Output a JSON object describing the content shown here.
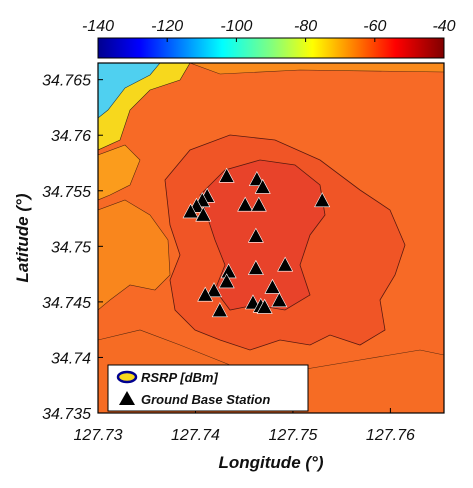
{
  "chart_data": {
    "type": "heatmap",
    "title": "",
    "xlabel": "Longitude (°)",
    "ylabel": "Latitude (°)",
    "xlim": [
      127.73,
      127.7655
    ],
    "ylim": [
      34.735,
      34.7665
    ],
    "x_ticks": [
      127.73,
      127.74,
      127.75,
      127.76
    ],
    "x_tick_labels": [
      "127.73",
      "127.74",
      "127.75",
      "127.76"
    ],
    "y_ticks": [
      34.735,
      34.74,
      34.745,
      34.75,
      34.755,
      34.76,
      34.765
    ],
    "y_tick_labels": [
      "34.735",
      "34.74",
      "34.745",
      "34.75",
      "34.755",
      "34.76",
      "34.765"
    ],
    "colorbar": {
      "label": "RSRP [dBm]",
      "range": [
        -140,
        -40
      ],
      "ticks": [
        -140,
        -120,
        -100,
        -80,
        -60,
        -40
      ],
      "tick_labels": [
        "-140",
        "-120",
        "-100",
        "-80",
        "-60",
        "-40"
      ],
      "colormap": "jet",
      "position": "top"
    },
    "legend": {
      "position": "bottom-left",
      "entries": [
        {
          "label": "RSRP [dBm]",
          "marker": "contour"
        },
        {
          "label": "Ground Base Station",
          "marker": "triangle"
        }
      ]
    },
    "series": [
      {
        "name": "Ground Base Station",
        "marker": "black-triangle",
        "points": [
          [
            127.7432,
            34.7563
          ],
          [
            127.7463,
            34.756
          ],
          [
            127.7469,
            34.7553
          ],
          [
            127.7412,
            34.7545
          ],
          [
            127.7407,
            34.7541
          ],
          [
            127.7401,
            34.7536
          ],
          [
            127.7395,
            34.7531
          ],
          [
            127.7408,
            34.7528
          ],
          [
            127.7451,
            34.7537
          ],
          [
            127.7465,
            34.7537
          ],
          [
            127.753,
            34.7541
          ],
          [
            127.7462,
            34.7509
          ],
          [
            127.7434,
            34.7477
          ],
          [
            127.7462,
            34.748
          ],
          [
            127.7492,
            34.7483
          ],
          [
            127.7432,
            34.7468
          ],
          [
            127.7479,
            34.7463
          ],
          [
            127.7419,
            34.746
          ],
          [
            127.741,
            34.7456
          ],
          [
            127.7459,
            34.7449
          ],
          [
            127.7467,
            34.7446
          ],
          [
            127.7471,
            34.7445
          ],
          [
            127.7486,
            34.7451
          ],
          [
            127.7425,
            34.7442
          ]
        ]
      }
    ],
    "field_regions": [
      {
        "name": "outer background",
        "rsrp": -56
      },
      {
        "name": "inner core",
        "rsrp": -50
      },
      {
        "name": "central cluster",
        "rsrp": -47
      },
      {
        "name": "west sea",
        "rsrp": -62
      },
      {
        "name": "northwest coast",
        "rsrp": -85
      },
      {
        "name": "far northwest sea",
        "rsrp": -100
      }
    ]
  }
}
